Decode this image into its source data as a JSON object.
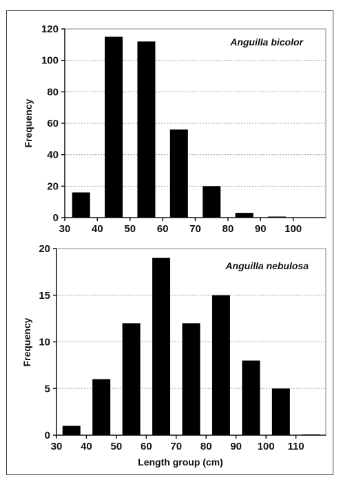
{
  "chart_data": [
    {
      "type": "bar",
      "annotation": "Anguilla bicolor",
      "ylabel": "Frequency",
      "xlabel": "",
      "ylim": [
        0,
        120
      ],
      "yticks": [
        "0",
        "20",
        "40",
        "60",
        "80",
        "100",
        "120"
      ],
      "xlim": [
        30,
        110
      ],
      "xticks": [
        "30",
        "40",
        "50",
        "60",
        "70",
        "80",
        "90",
        "100"
      ],
      "bin_centers": [
        35,
        45,
        55,
        65,
        75,
        85,
        95
      ],
      "values": [
        16,
        115,
        112,
        56,
        20,
        3,
        0.5
      ],
      "grid": true
    },
    {
      "type": "bar",
      "annotation": "Anguilla nebulosa",
      "ylabel": "Frequency",
      "xlabel": "Length group (cm)",
      "ylim": [
        0,
        20
      ],
      "yticks": [
        "0",
        "5",
        "10",
        "15",
        "20"
      ],
      "xlim": [
        30,
        120
      ],
      "xticks": [
        "30",
        "40",
        "50",
        "60",
        "70",
        "80",
        "90",
        "100",
        "110"
      ],
      "bin_centers": [
        35,
        45,
        55,
        65,
        75,
        85,
        95,
        105,
        115
      ],
      "values": [
        1,
        6,
        12,
        19,
        12,
        15,
        8,
        5,
        0
      ],
      "grid": true
    }
  ]
}
